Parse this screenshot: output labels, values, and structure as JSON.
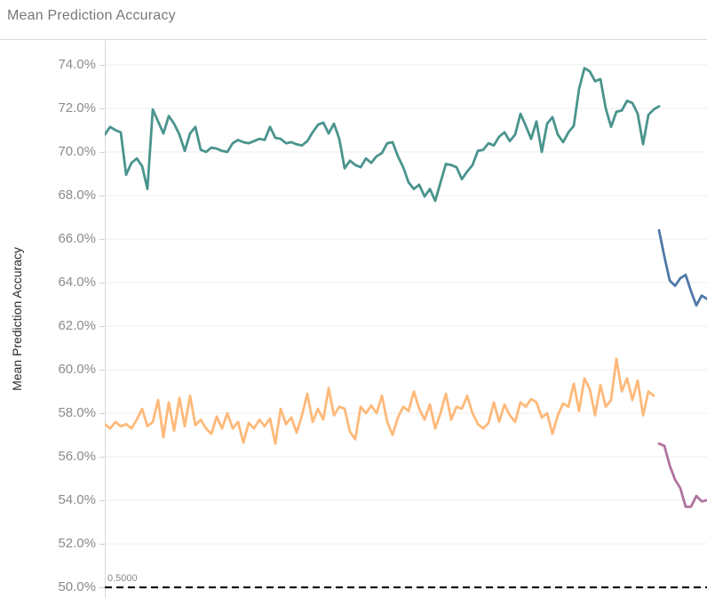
{
  "header": {
    "title": "Mean Prediction Accuracy"
  },
  "chart_data": {
    "type": "line",
    "title": "Mean Prediction Accuracy",
    "xlabel": "",
    "ylabel": "Mean Prediction Accuracy",
    "ylim": [
      50.0,
      74.0
    ],
    "y_unit": "percent",
    "grid": "horizontal-light",
    "legend_position": "none",
    "x_tick_labels": [],
    "ytick_labels": [
      "74.0%",
      "72.0%",
      "70.0%",
      "68.0%",
      "66.0%",
      "64.0%",
      "62.0%",
      "60.0%",
      "58.0%",
      "56.0%",
      "54.0%",
      "52.0%",
      "50.0%"
    ],
    "ytick_values": [
      74.0,
      72.0,
      70.0,
      68.0,
      66.0,
      64.0,
      62.0,
      60.0,
      58.0,
      56.0,
      54.0,
      52.0,
      50.0
    ],
    "reference_line": {
      "label": "0.5000",
      "value": 50.0,
      "style": "black-dashed"
    },
    "series": [
      {
        "name": "teal-line",
        "color": "#4a948d",
        "x_range": [
          0.0,
          0.9204
        ],
        "values": [
          70.8,
          71.15,
          71.0,
          70.9,
          68.95,
          69.5,
          69.7,
          69.35,
          68.3,
          71.95,
          71.4,
          70.85,
          71.65,
          71.3,
          70.8,
          70.05,
          70.85,
          71.15,
          70.1,
          70.0,
          70.2,
          70.15,
          70.05,
          70.0,
          70.4,
          70.55,
          70.45,
          70.4,
          70.5,
          70.6,
          70.55,
          71.15,
          70.65,
          70.6,
          70.4,
          70.45,
          70.35,
          70.3,
          70.5,
          70.9,
          71.25,
          71.35,
          70.85,
          71.3,
          70.6,
          69.25,
          69.6,
          69.4,
          69.3,
          69.7,
          69.5,
          69.8,
          69.95,
          70.4,
          70.45,
          69.8,
          69.3,
          68.6,
          68.3,
          68.5,
          67.95,
          68.3,
          67.75,
          68.6,
          69.45,
          69.4,
          69.3,
          68.75,
          69.1,
          69.4,
          70.05,
          70.1,
          70.4,
          70.3,
          70.7,
          70.9,
          70.5,
          70.8,
          71.75,
          71.2,
          70.6,
          71.4,
          70.0,
          71.3,
          71.6,
          70.8,
          70.45,
          70.9,
          71.2,
          72.9,
          73.85,
          73.7,
          73.25,
          73.35,
          72.0,
          71.15,
          71.85,
          71.9,
          72.35,
          72.25,
          71.75,
          70.35,
          71.7,
          71.95,
          72.1
        ]
      },
      {
        "name": "orange-line",
        "color": "#fdb97a",
        "x_range": [
          0.0,
          0.9115
        ],
        "values": [
          57.5,
          57.3,
          57.6,
          57.4,
          57.5,
          57.3,
          57.7,
          58.2,
          57.4,
          57.6,
          58.6,
          56.9,
          58.5,
          57.2,
          58.7,
          57.4,
          58.8,
          57.45,
          57.7,
          57.3,
          57.05,
          57.85,
          57.3,
          58.0,
          57.3,
          57.6,
          56.65,
          57.55,
          57.3,
          57.7,
          57.4,
          57.75,
          56.6,
          58.2,
          57.5,
          57.8,
          57.1,
          57.9,
          58.9,
          57.6,
          58.2,
          57.7,
          59.15,
          57.9,
          58.3,
          58.2,
          57.15,
          56.8,
          58.3,
          58.0,
          58.35,
          58.0,
          58.8,
          57.6,
          57.0,
          57.8,
          58.3,
          58.1,
          59.0,
          58.2,
          57.7,
          58.4,
          57.3,
          58.0,
          58.9,
          57.7,
          58.3,
          58.2,
          58.8,
          58.0,
          57.5,
          57.3,
          57.55,
          58.5,
          57.6,
          58.4,
          57.9,
          57.6,
          58.5,
          58.3,
          58.65,
          58.5,
          57.8,
          58.0,
          57.05,
          57.9,
          58.45,
          58.3,
          59.35,
          58.1,
          59.6,
          59.1,
          57.9,
          59.3,
          58.3,
          58.6,
          60.5,
          59.0,
          59.6,
          58.6,
          59.5,
          57.9,
          59.0,
          58.8
        ]
      },
      {
        "name": "blue-line",
        "color": "#4e79a7",
        "x_range": [
          0.9204,
          1.0
        ],
        "values": [
          66.4,
          65.2,
          64.1,
          63.85,
          64.2,
          64.35,
          63.6,
          62.95,
          63.4,
          63.25
        ]
      },
      {
        "name": "purple-line",
        "color": "#b0739e",
        "x_range": [
          0.9204,
          1.0
        ],
        "values": [
          56.6,
          56.5,
          55.6,
          54.95,
          54.55,
          53.7,
          53.7,
          54.2,
          53.95,
          54.0
        ]
      }
    ]
  }
}
